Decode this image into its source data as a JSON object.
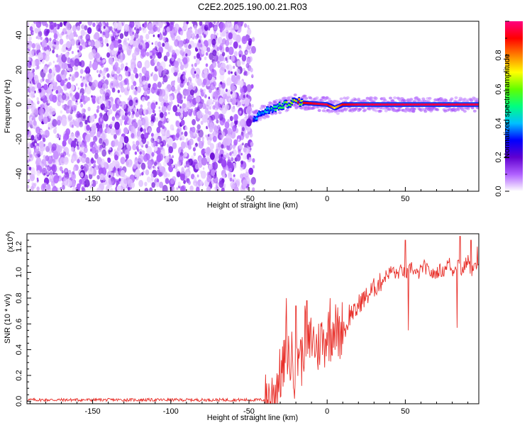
{
  "title": "C2E2.2025.190.00.21.R03",
  "chart_data": [
    {
      "type": "heatmap",
      "xlabel": "Height of straight line (km)",
      "ylabel": "Frequency (Hz)",
      "xlim": [
        -192,
        97
      ],
      "ylim": [
        -50,
        48
      ],
      "xticks": [
        -150,
        -100,
        -50,
        0,
        50
      ],
      "yticks": [
        -40,
        -20,
        0,
        20,
        40
      ],
      "noise_region_x": [
        -192,
        -47
      ],
      "signal_ridge": {
        "description": "narrow band near 0 Hz",
        "x": [
          -47,
          -40,
          -30,
          -20,
          -15,
          0,
          5,
          10,
          20,
          50,
          97
        ],
        "frequency": [
          -8,
          -4,
          -1,
          2,
          1,
          0,
          -2,
          0,
          0,
          0,
          0
        ],
        "amplitude": [
          0.35,
          0.45,
          0.55,
          0.8,
          0.9,
          0.95,
          0.7,
          0.9,
          0.95,
          0.95,
          0.95
        ]
      },
      "colorbar": {
        "label": "Normalized spectral amplitude",
        "ticks": [
          0.0,
          0.2,
          0.4,
          0.6,
          0.8
        ],
        "range": [
          0,
          1
        ],
        "colors": [
          "#ffffff",
          "#b060ff",
          "#6000d0",
          "#0000ff",
          "#00c0ff",
          "#00ff80",
          "#60ff00",
          "#ffff00",
          "#ff8000",
          "#ff0000",
          "#ff0080"
        ]
      }
    },
    {
      "type": "line",
      "xlabel": "Height of straight line (km)",
      "ylabel": "SNR (10 * v/v)",
      "y_multiplier": "(x10",
      "y_multiplier_exp": "4",
      "y_multiplier_close": ")",
      "xlim": [
        -192,
        97
      ],
      "ylim": [
        -0.02,
        1.3
      ],
      "xticks": [
        -150,
        -100,
        -50,
        0,
        50
      ],
      "yticks": [
        0.0,
        0.2,
        0.4,
        0.6,
        0.8,
        1.0,
        1.2
      ],
      "color": "#e8302a",
      "series": [
        {
          "x": [
            -192,
            -150,
            -100,
            -60,
            -40,
            -36,
            -34,
            -32,
            -30,
            -28,
            -26,
            -24,
            -22,
            -20,
            -18,
            -16,
            -14,
            -12,
            -10,
            -8,
            -6,
            -4,
            -2,
            0,
            2,
            4,
            6,
            8,
            10,
            12,
            14,
            16,
            18,
            20,
            22,
            24,
            26,
            28,
            30,
            32,
            34,
            36,
            38,
            40,
            42,
            44,
            46,
            48,
            50,
            52,
            54,
            56,
            58,
            60,
            62,
            64,
            66,
            68,
            70,
            72,
            74,
            76,
            78,
            80,
            82,
            84,
            86,
            88,
            90,
            92,
            94,
            96
          ],
          "y": [
            0.01,
            0.01,
            0.01,
            0.01,
            0.01,
            0.03,
            0.08,
            0.15,
            0.2,
            0.25,
            0.45,
            0.3,
            0.35,
            0.15,
            0.45,
            0.3,
            0.55,
            0.4,
            0.5,
            0.45,
            0.4,
            0.5,
            0.45,
            0.55,
            0.5,
            0.6,
            0.55,
            0.5,
            0.6,
            0.55,
            0.65,
            0.7,
            0.68,
            0.75,
            0.78,
            0.8,
            0.82,
            0.85,
            0.88,
            0.9,
            0.92,
            0.95,
            0.98,
            1.0,
            1.02,
            0.98,
            1.0,
            1.02,
            0.98,
            1.0,
            1.05,
            1.0,
            0.98,
            1.02,
            1.05,
            1.02,
            1.0,
            0.98,
            1.0,
            1.02,
            1.0,
            1.05,
            1.08,
            1.0,
            1.05,
            1.08,
            1.0,
            1.05,
            1.1,
            1.0,
            1.05,
            1.02
          ]
        }
      ],
      "spikes": [
        {
          "x": -26,
          "y": 0.8
        },
        {
          "x": -20,
          "y": 0.74
        },
        {
          "x": -13,
          "y": 0.78
        },
        {
          "x": 2,
          "y": 0.8
        },
        {
          "x": 14,
          "y": 0.75
        },
        {
          "x": 50,
          "y": 1.25
        },
        {
          "x": 52,
          "y": 0.55
        },
        {
          "x": 83,
          "y": 0.57
        },
        {
          "x": 85,
          "y": 1.28
        },
        {
          "x": 92,
          "y": 1.25
        },
        {
          "x": 96,
          "y": 1.2
        }
      ]
    }
  ]
}
